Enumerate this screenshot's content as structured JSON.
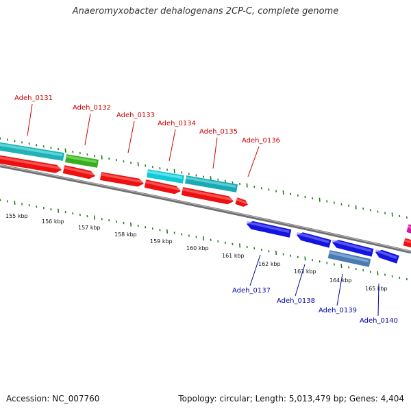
{
  "title": "Anaeromyxobacter dehalogenans 2CP-C, complete genome",
  "footer": {
    "accession": "Accession: NC_007760",
    "topology": "Topology: circular; Length: 5,013,479 bp; Genes: 4,404"
  },
  "colors": {
    "forward_label": "#cc0000",
    "reverse_label": "#0000aa",
    "tick": "#1a7a1a",
    "backbone": "#888888"
  },
  "kbp_labels": [
    "155 kbp",
    "156 kbp",
    "157 kbp",
    "158 kbp",
    "159 kbp",
    "160 kbp",
    "161 kbp",
    "162 kbp",
    "163 kbp",
    "164 kbp",
    "165 kbp"
  ],
  "forward_genes": [
    {
      "name": "Adeh_0131"
    },
    {
      "name": "Adeh_0132"
    },
    {
      "name": "Adeh_0133"
    },
    {
      "name": "Adeh_0134"
    },
    {
      "name": "Adeh_0135"
    },
    {
      "name": "Adeh_0136"
    }
  ],
  "reverse_genes": [
    {
      "name": "Adeh_0137"
    },
    {
      "name": "Adeh_0138"
    },
    {
      "name": "Adeh_0139"
    },
    {
      "name": "Adeh_0140"
    }
  ]
}
